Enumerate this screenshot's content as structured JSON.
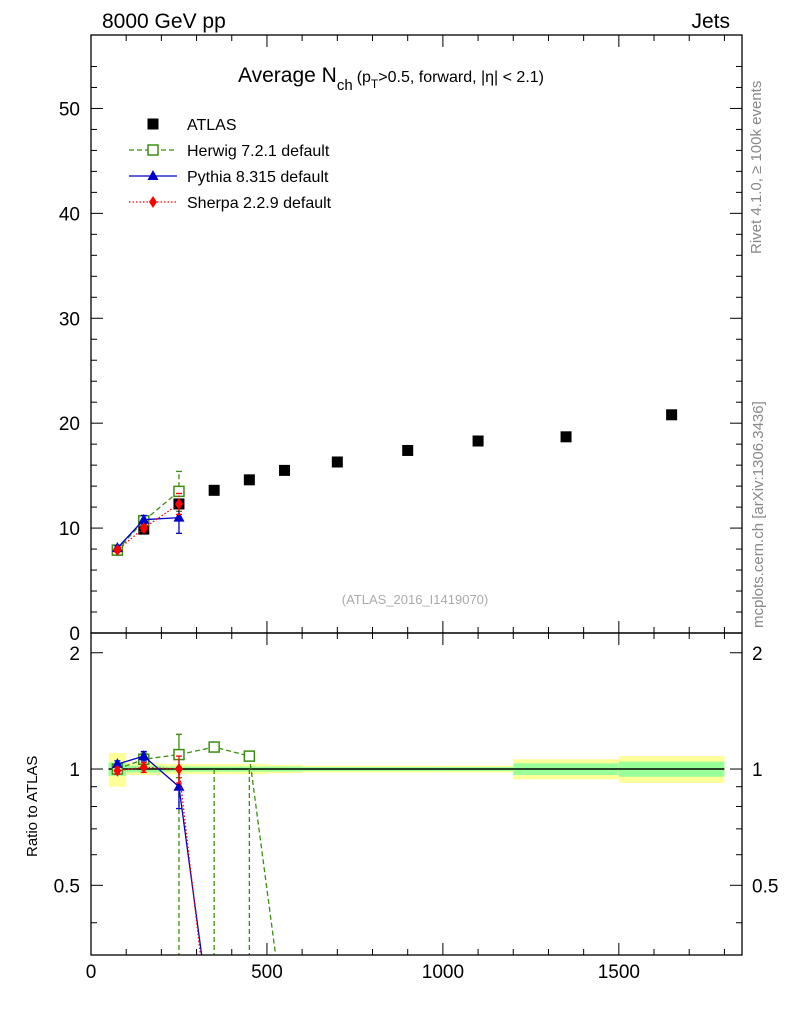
{
  "header": {
    "energy": "8000 GeV pp",
    "process": "Jets"
  },
  "side_text": {
    "rivet": "Rivet 4.1.0, ≥ 100k events",
    "mcplots": "mcplots.cern.ch [arXiv:1306.3436]"
  },
  "watermark": "(ATLAS_2016_I1419070)",
  "colors": {
    "data": "#000000",
    "herwig": "#3a8f0f",
    "pythia": "#0000cc",
    "sherpa": "#ff0000",
    "band_outer": "#ffff99",
    "band_inner": "#99ff99"
  },
  "chart_data": [
    {
      "type": "scatter",
      "panel": "main",
      "title_parts": {
        "main": "Average N",
        "sub": "ch",
        "cond_open": "(p",
        "cond_sub": "T",
        "cond_rest": ">0.5, forward, |η| < 2.1)"
      },
      "xlim": [
        0,
        1850
      ],
      "ylim": [
        0,
        57
      ],
      "yticks": [
        0,
        10,
        20,
        30,
        40,
        50
      ],
      "xlabel": "",
      "ylabel": "",
      "legend_position": "top-left",
      "legend": [
        "ATLAS",
        "Herwig 7.2.1 default",
        "Pythia 8.315 default",
        "Sherpa 2.2.9 default"
      ],
      "series": [
        {
          "name": "ATLAS",
          "marker": "square",
          "x": [
            75,
            150,
            250,
            350,
            450,
            550,
            700,
            900,
            1100,
            1350,
            1650
          ],
          "y": [
            7.9,
            9.9,
            12.3,
            13.6,
            14.6,
            15.5,
            16.3,
            17.4,
            18.3,
            18.7,
            20.8
          ]
        },
        {
          "name": "Herwig 7.2.1 default",
          "marker": "open-square",
          "line": "dashed",
          "x": [
            75,
            150,
            250
          ],
          "y": [
            7.9,
            10.7,
            13.5
          ],
          "yerr": [
            0.3,
            0.4,
            1.9
          ]
        },
        {
          "name": "Pythia 8.315 default",
          "marker": "triangle",
          "line": "solid",
          "x": [
            75,
            150,
            250
          ],
          "y": [
            8.1,
            10.8,
            11.0
          ],
          "yerr": [
            0.2,
            0.4,
            1.5
          ]
        },
        {
          "name": "Sherpa 2.2.9 default",
          "marker": "diamond",
          "line": "dotted",
          "x": [
            75,
            150,
            250
          ],
          "y": [
            7.9,
            10.0,
            12.3
          ],
          "yerr": [
            0.2,
            0.3,
            1.0
          ]
        }
      ]
    },
    {
      "type": "line",
      "panel": "ratio",
      "xlim": [
        0,
        1850
      ],
      "ylim": [
        0.33,
        2.25
      ],
      "yticks": [
        0.5,
        1,
        2
      ],
      "xticks": [
        0,
        500,
        1000,
        1500
      ],
      "ylabel": "Ratio to ATLAS",
      "bands": [
        {
          "x0": 50,
          "x1": 100,
          "outer": 0.1,
          "inner": 0.04
        },
        {
          "x0": 100,
          "x1": 200,
          "outer": 0.035,
          "inner": 0.02
        },
        {
          "x0": 200,
          "x1": 300,
          "outer": 0.03,
          "inner": 0.015
        },
        {
          "x0": 300,
          "x1": 400,
          "outer": 0.03,
          "inner": 0.015
        },
        {
          "x0": 400,
          "x1": 500,
          "outer": 0.03,
          "inner": 0.015
        },
        {
          "x0": 500,
          "x1": 600,
          "outer": 0.025,
          "inner": 0.015
        },
        {
          "x0": 600,
          "x1": 800,
          "outer": 0.02,
          "inner": 0.012
        },
        {
          "x0": 800,
          "x1": 1000,
          "outer": 0.02,
          "inner": 0.012
        },
        {
          "x0": 1000,
          "x1": 1200,
          "outer": 0.02,
          "inner": 0.012
        },
        {
          "x0": 1200,
          "x1": 1500,
          "outer": 0.06,
          "inner": 0.035
        },
        {
          "x0": 1500,
          "x1": 1800,
          "outer": 0.08,
          "inner": 0.045
        }
      ],
      "series": [
        {
          "name": "Herwig 7.2.1 default",
          "marker": "open-square",
          "line": "dashed",
          "x": [
            75,
            150,
            250,
            350,
            450,
            535
          ],
          "y": [
            1.0,
            1.06,
            1.09,
            1.14,
            1.08,
            0.28
          ],
          "yerr": [
            0.03,
            0.04,
            0.14,
            0,
            0,
            0
          ],
          "drops": [
            {
              "x": 250,
              "to": 0.28
            },
            {
              "x": 350,
              "to": 0.28
            },
            {
              "x": 450,
              "to": 0.28
            }
          ]
        },
        {
          "name": "Pythia 8.315 default",
          "marker": "triangle",
          "line": "solid",
          "x": [
            75,
            150,
            250,
            325
          ],
          "y": [
            1.03,
            1.08,
            0.9,
            0.28
          ],
          "yerr": [
            0.02,
            0.03,
            0.11,
            0
          ]
        },
        {
          "name": "Sherpa 2.2.9 default",
          "marker": "diamond",
          "line": "dotted",
          "x": [
            75,
            150,
            250,
            320
          ],
          "y": [
            0.99,
            1.01,
            1.0,
            0.28
          ],
          "yerr": [
            0.02,
            0.03,
            0.08,
            0
          ]
        }
      ]
    }
  ]
}
